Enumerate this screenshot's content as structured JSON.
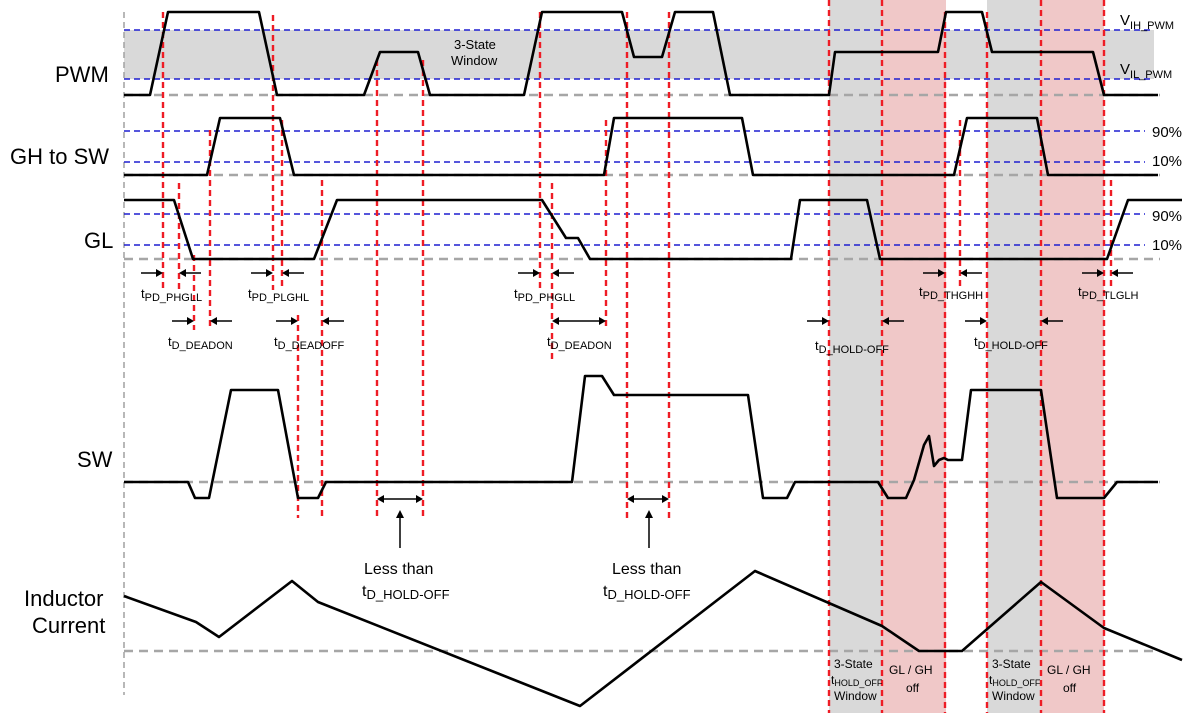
{
  "signals": {
    "pwm": "PWM",
    "gh_to_sw": "GH to SW",
    "gl": "GL",
    "sw": "SW",
    "inductor_line1": "Inductor",
    "inductor_line2": "Current"
  },
  "thresholds": {
    "vih_main": "V",
    "vih_sub": "IH_PWM",
    "vil_main": "V",
    "vil_sub": "IL_PWM",
    "pct90_a": "90%",
    "pct10_a": "10%",
    "pct90_b": "90%",
    "pct10_b": "10%"
  },
  "three_state_window": {
    "line1": "3-State",
    "line2": "Window"
  },
  "timing": {
    "t_pd_phgll_1": {
      "main": "t",
      "sub": "PD_PHGLL"
    },
    "t_pd_plghl": {
      "main": "t",
      "sub": "PD_PLGHL"
    },
    "t_pd_phgll_2": {
      "main": "t",
      "sub": "PD_PHGLL"
    },
    "t_pd_thghh": {
      "main": "t",
      "sub": "PD_THGHH"
    },
    "t_pd_tlglh": {
      "main": "t",
      "sub": "PD_TLGLH"
    },
    "t_d_deadon_1": {
      "main": "t",
      "sub": "D_DEADON"
    },
    "t_d_deadoff": {
      "main": "t",
      "sub": "D_DEADOFF"
    },
    "t_d_deadon_2": {
      "main": "t",
      "sub": "D_DEADON"
    },
    "t_d_hold_off_1": {
      "main": "t",
      "sub": "D_HOLD-OFF"
    },
    "t_d_hold_off_2": {
      "main": "t",
      "sub": "D_HOLD-OFF"
    }
  },
  "notes": {
    "less_than_1_line1": "Less than",
    "less_than_1_main": "t",
    "less_than_1_sub": "D_HOLD-OFF",
    "less_than_2_line1": "Less than",
    "less_than_2_main": "t",
    "less_than_2_sub": "D_HOLD-OFF"
  },
  "regions": {
    "left_gray_line1": "3-State",
    "left_gray_line2_main": "t",
    "left_gray_line2_sub": "HOLD_OFF",
    "left_gray_line3": "Window",
    "left_pink_line1": "GL / GH",
    "left_pink_line2": "off",
    "right_gray_line1": "3-State",
    "right_gray_line2_main": "t",
    "right_gray_line2_sub": "HOLD_OFF",
    "right_gray_line3": "Window",
    "right_pink_line1": "GL / GH",
    "right_pink_line2": "off"
  },
  "colors": {
    "gray_fill": "#d9d9d9",
    "pink_fill": "#f0c8c8",
    "threshold_line": "#1f1fd0",
    "timing_marker": "#ee1c25",
    "waveform": "#000000",
    "baseline": "#a6a6a6"
  }
}
